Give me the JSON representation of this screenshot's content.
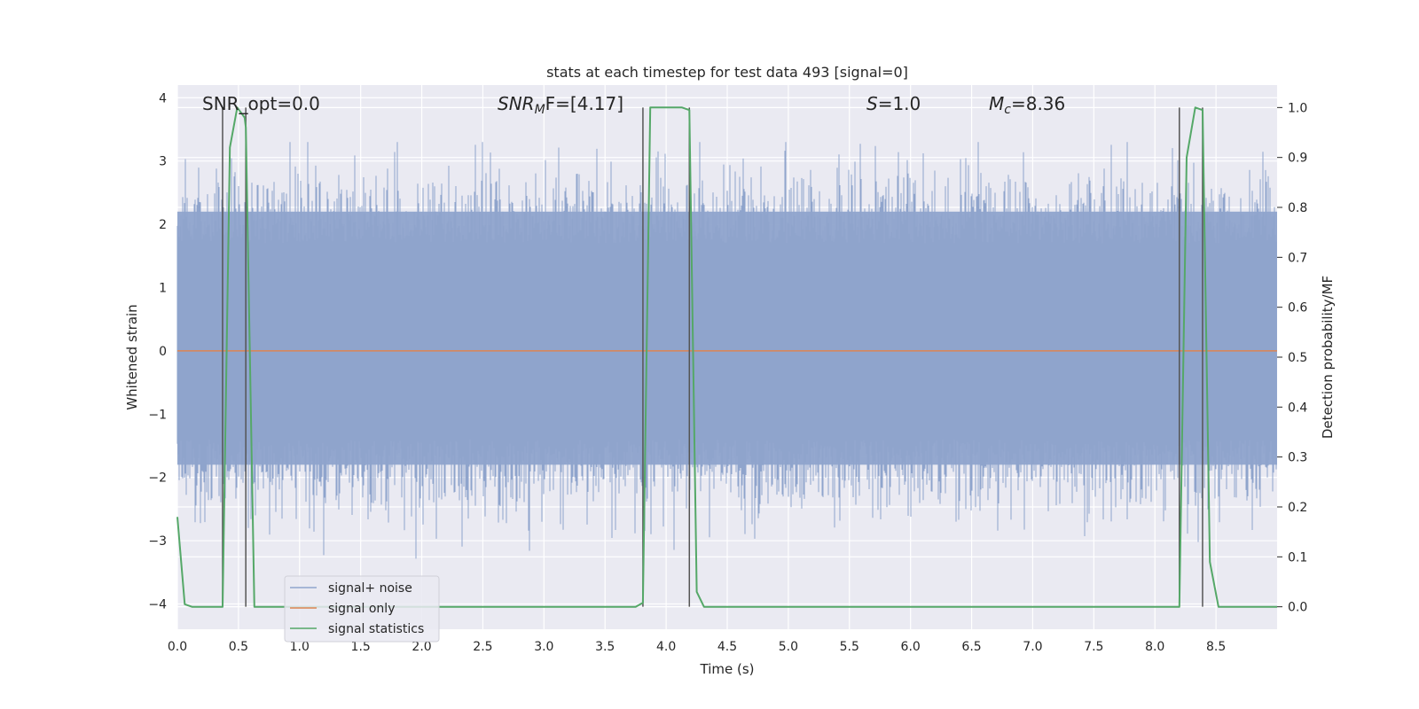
{
  "chart_data": {
    "type": "line",
    "title": "stats at each timestep for test data 493 [signal=0]",
    "xlabel": "Time (s)",
    "ylabel": "Whitened strain",
    "y2label": "Detection probability/MF",
    "xlim": [
      0.0,
      9.0
    ],
    "ylim": [
      -4.4,
      4.2
    ],
    "y2lim": [
      -0.045,
      1.045
    ],
    "x_ticks": [
      "0.0",
      "0.5",
      "1.0",
      "1.5",
      "2.0",
      "2.5",
      "3.0",
      "3.5",
      "4.0",
      "4.5",
      "5.0",
      "5.5",
      "6.0",
      "6.5",
      "7.0",
      "7.5",
      "8.0",
      "8.5"
    ],
    "y_ticks": [
      "4",
      "3",
      "2",
      "1",
      "0",
      "−1",
      "−2",
      "−3",
      "−4"
    ],
    "y2_ticks": [
      "1.0",
      "0.9",
      "0.8",
      "0.7",
      "0.6",
      "0.5",
      "0.4",
      "0.3",
      "0.2",
      "0.1",
      "0.0"
    ],
    "grid": true,
    "legend_position": "lower-left",
    "annotations": {
      "snr_opt": "SNR_opt=0.0",
      "snr_mf_var": "SNR",
      "snr_mf_sub": "M",
      "snr_mf_rest": "F=[4.17]",
      "s_var": "S",
      "s_rest": "=1.0",
      "mc_var": "M",
      "mc_sub": "c",
      "mc_rest": "=8.36"
    },
    "series": [
      {
        "name": "signal+ noise",
        "color": "#8fa4cc",
        "description_note": "dense whitened noise, roughly spanning -2 to +2.5",
        "envelope_upper": 2.2,
        "envelope_lower": -1.8
      },
      {
        "name": "signal only",
        "color": "#dd8452",
        "x": [
          0.0,
          9.0
        ],
        "y": [
          0.0,
          0.0
        ]
      },
      {
        "name": "signal statistics",
        "color": "#55a868",
        "axis": "right",
        "x": [
          0.0,
          0.06,
          0.12,
          0.37,
          0.43,
          0.49,
          0.55,
          0.56,
          0.63,
          3.75,
          3.81,
          3.87,
          4.13,
          4.19,
          4.25,
          4.31,
          8.2,
          8.26,
          8.33,
          8.39,
          8.45,
          8.52,
          9.0
        ],
        "y": [
          0.18,
          0.005,
          0.0,
          0.0,
          0.92,
          1.0,
          0.98,
          0.96,
          0.0,
          0.0,
          0.008,
          1.0,
          1.0,
          0.995,
          0.03,
          0.0,
          0.0,
          0.9,
          1.0,
          0.995,
          0.09,
          0.0,
          0.0
        ]
      }
    ],
    "vertical_markers": [
      0.37,
      0.56,
      3.81,
      4.19,
      8.2,
      8.39
    ]
  }
}
